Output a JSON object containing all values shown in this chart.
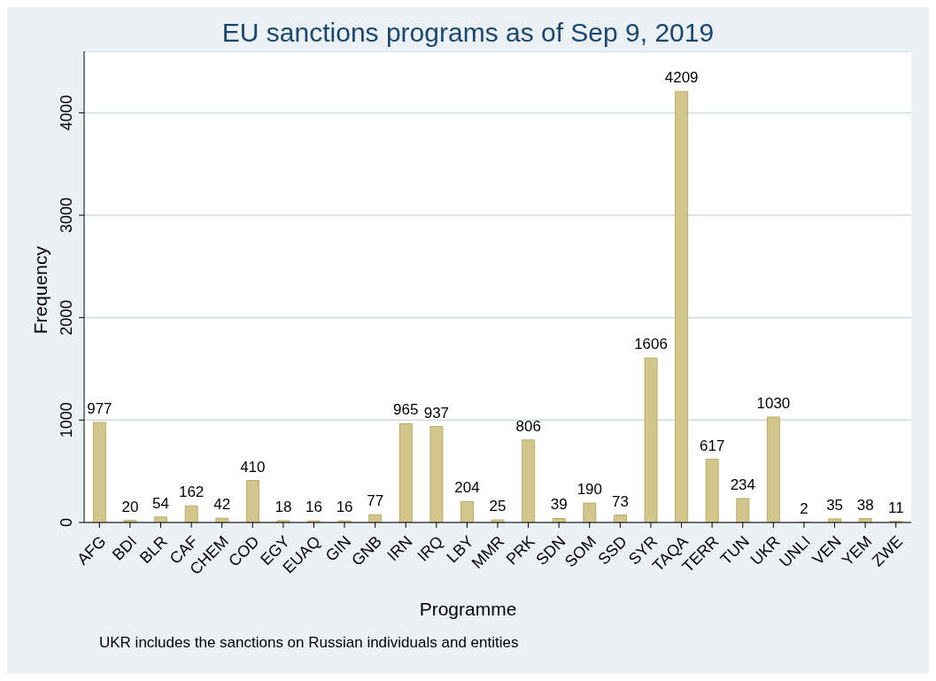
{
  "chart_data": {
    "type": "bar",
    "title": "EU sanctions programs as of Sep 9, 2019",
    "xlabel": "Programme",
    "ylabel": "Frequency",
    "annotations": [
      "UKR includes the sanctions on Russian individuals and entities"
    ],
    "categories": [
      "AFG",
      "BDI",
      "BLR",
      "CAF",
      "CHEM",
      "COD",
      "EGY",
      "EUAQ",
      "GIN",
      "GNB",
      "IRN",
      "IRQ",
      "LBY",
      "MMR",
      "PRK",
      "SDN",
      "SOM",
      "SSD",
      "SYR",
      "TAQA",
      "TERR",
      "TUN",
      "UKR",
      "UNLI",
      "VEN",
      "YEM",
      "ZWE"
    ],
    "values": [
      977,
      20,
      54,
      162,
      42,
      410,
      18,
      16,
      16,
      77,
      965,
      937,
      204,
      25,
      806,
      39,
      190,
      73,
      1606,
      4209,
      617,
      234,
      1030,
      2,
      35,
      38,
      11
    ],
    "color": "#d3c68b",
    "ylim": [
      0,
      4600
    ],
    "yticks": [
      0,
      1000,
      2000,
      3000,
      4000
    ],
    "grid": "y",
    "data_labels": true,
    "legend": false
  }
}
